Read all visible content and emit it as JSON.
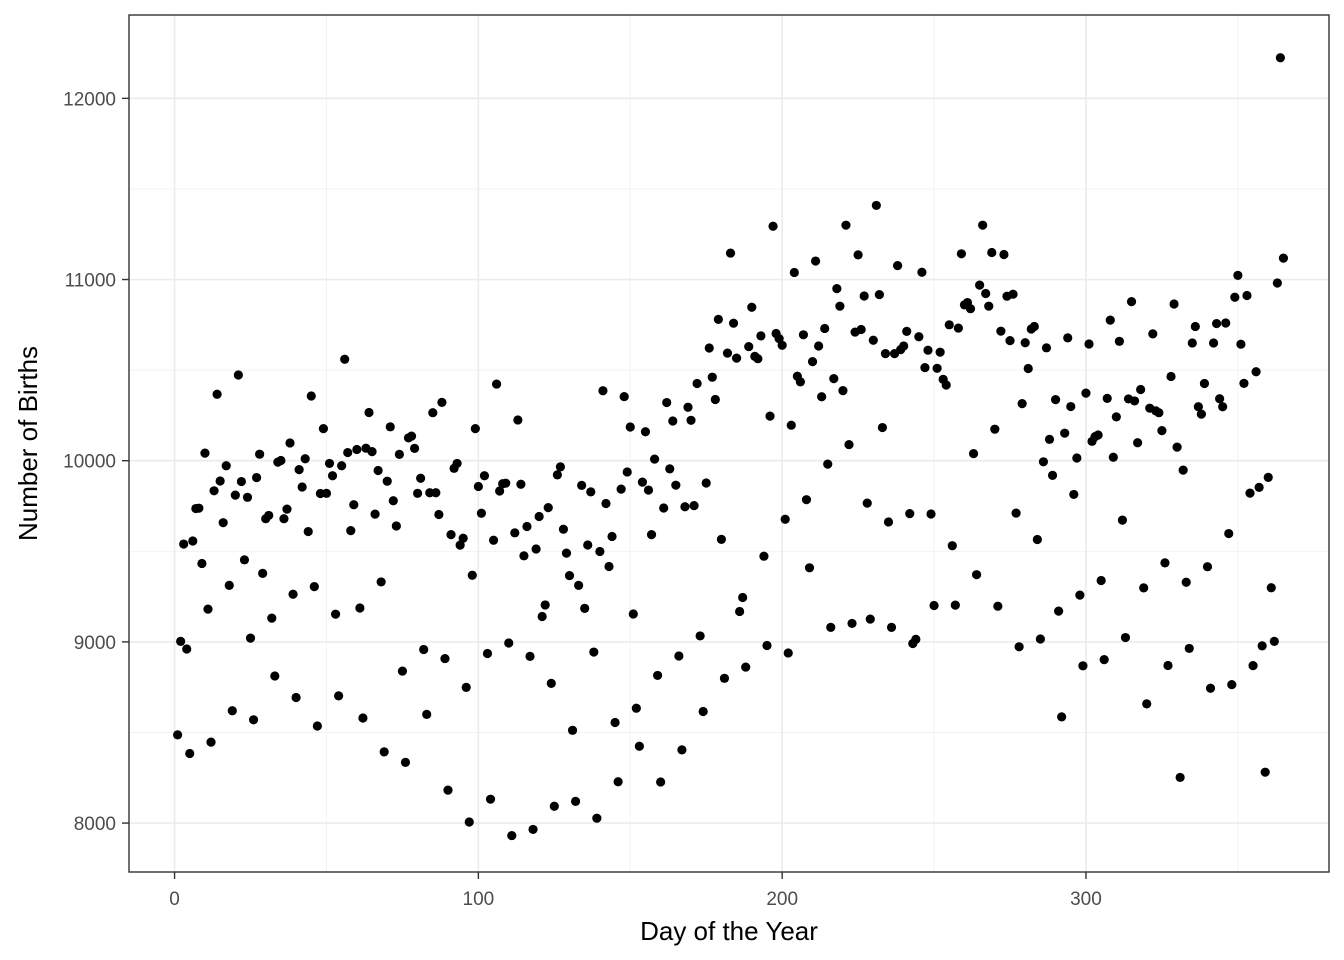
{
  "chart_data": {
    "type": "scatter",
    "xlabel": "Day of the Year",
    "ylabel": "Number of Births",
    "xlim": [
      -15,
      380
    ],
    "ylim": [
      7730,
      12460
    ],
    "x_ticks": [
      0,
      100,
      200,
      300
    ],
    "y_ticks": [
      8000,
      9000,
      10000,
      11000,
      12000
    ],
    "x_minor": [
      50,
      150,
      250,
      350
    ],
    "y_minor": [
      8500,
      9500,
      10500,
      11500
    ],
    "grid": true,
    "theme": "bw",
    "point_color": "#000000",
    "points": [
      [
        1,
        8487
      ],
      [
        2,
        9003
      ],
      [
        3,
        9540
      ],
      [
        4,
        8961
      ],
      [
        5,
        8384
      ],
      [
        6,
        9557
      ],
      [
        7,
        9736
      ],
      [
        8,
        9738
      ],
      [
        9,
        9433
      ],
      [
        10,
        10042
      ],
      [
        11,
        9181
      ],
      [
        12,
        8447
      ],
      [
        13,
        9834
      ],
      [
        14,
        10367
      ],
      [
        15,
        9888
      ],
      [
        16,
        9658
      ],
      [
        17,
        9972
      ],
      [
        18,
        9312
      ],
      [
        19,
        8620
      ],
      [
        20,
        9810
      ],
      [
        21,
        10473
      ],
      [
        22,
        9885
      ],
      [
        23,
        9453
      ],
      [
        24,
        9798
      ],
      [
        25,
        9021
      ],
      [
        26,
        8570
      ],
      [
        27,
        9907
      ],
      [
        28,
        10036
      ],
      [
        29,
        9378
      ],
      [
        30,
        9680
      ],
      [
        31,
        9698
      ],
      [
        32,
        9131
      ],
      [
        33,
        8812
      ],
      [
        34,
        9992
      ],
      [
        35,
        10001
      ],
      [
        36,
        9680
      ],
      [
        37,
        9733
      ],
      [
        38,
        10098
      ],
      [
        39,
        9263
      ],
      [
        40,
        8693
      ],
      [
        41,
        9951
      ],
      [
        42,
        9855
      ],
      [
        43,
        10011
      ],
      [
        44,
        9609
      ],
      [
        45,
        10357
      ],
      [
        46,
        9305
      ],
      [
        47,
        8536
      ],
      [
        48,
        9819
      ],
      [
        49,
        10177
      ],
      [
        50,
        9820
      ],
      [
        51,
        9985
      ],
      [
        52,
        9917
      ],
      [
        53,
        9153
      ],
      [
        54,
        8702
      ],
      [
        55,
        9972
      ],
      [
        56,
        10560
      ],
      [
        57,
        10045
      ],
      [
        58,
        9614
      ],
      [
        59,
        9757
      ],
      [
        60,
        10062
      ],
      [
        61,
        9187
      ],
      [
        62,
        8580
      ],
      [
        63,
        10069
      ],
      [
        64,
        10266
      ],
      [
        65,
        10050
      ],
      [
        66,
        9705
      ],
      [
        67,
        9946
      ],
      [
        68,
        9331
      ],
      [
        69,
        8393
      ],
      [
        70,
        9887
      ],
      [
        71,
        10187
      ],
      [
        72,
        9779
      ],
      [
        73,
        9640
      ],
      [
        74,
        10035
      ],
      [
        75,
        8839
      ],
      [
        76,
        8335
      ],
      [
        77,
        10126
      ],
      [
        78,
        10136
      ],
      [
        79,
        10068
      ],
      [
        80,
        9820
      ],
      [
        81,
        9903
      ],
      [
        82,
        8958
      ],
      [
        83,
        8600
      ],
      [
        84,
        9823
      ],
      [
        85,
        10265
      ],
      [
        86,
        9823
      ],
      [
        87,
        9703
      ],
      [
        88,
        10322
      ],
      [
        89,
        8908
      ],
      [
        90,
        8182
      ],
      [
        91,
        9592
      ],
      [
        92,
        9958
      ],
      [
        93,
        9985
      ],
      [
        94,
        9534
      ],
      [
        95,
        9572
      ],
      [
        96,
        8749
      ],
      [
        97,
        8006
      ],
      [
        98,
        9368
      ],
      [
        99,
        10177
      ],
      [
        100,
        9858
      ],
      [
        101,
        9710
      ],
      [
        102,
        9917
      ],
      [
        103,
        8936
      ],
      [
        104,
        8132
      ],
      [
        105,
        9561
      ],
      [
        106,
        10423
      ],
      [
        107,
        9833
      ],
      [
        108,
        9873
      ],
      [
        109,
        9876
      ],
      [
        110,
        8994
      ],
      [
        111,
        7931
      ],
      [
        112,
        9602
      ],
      [
        113,
        10225
      ],
      [
        114,
        9870
      ],
      [
        115,
        9475
      ],
      [
        116,
        9637
      ],
      [
        117,
        8920
      ],
      [
        118,
        7965
      ],
      [
        119,
        9513
      ],
      [
        120,
        9692
      ],
      [
        121,
        9140
      ],
      [
        122,
        9204
      ],
      [
        123,
        9741
      ],
      [
        124,
        8771
      ],
      [
        125,
        8093
      ],
      [
        126,
        9922
      ],
      [
        127,
        9966
      ],
      [
        128,
        9622
      ],
      [
        129,
        9490
      ],
      [
        130,
        9366
      ],
      [
        131,
        8512
      ],
      [
        132,
        8120
      ],
      [
        133,
        9312
      ],
      [
        134,
        9864
      ],
      [
        135,
        9185
      ],
      [
        136,
        9535
      ],
      [
        137,
        9828
      ],
      [
        138,
        8944
      ],
      [
        139,
        8027
      ],
      [
        140,
        9499
      ],
      [
        141,
        10386
      ],
      [
        142,
        9764
      ],
      [
        143,
        9416
      ],
      [
        144,
        9582
      ],
      [
        145,
        8555
      ],
      [
        146,
        8228
      ],
      [
        147,
        9843
      ],
      [
        148,
        10354
      ],
      [
        149,
        9938
      ],
      [
        150,
        10186
      ],
      [
        151,
        9154
      ],
      [
        152,
        8634
      ],
      [
        153,
        8424
      ],
      [
        154,
        9882
      ],
      [
        155,
        10160
      ],
      [
        156,
        9838
      ],
      [
        157,
        9592
      ],
      [
        158,
        10009
      ],
      [
        159,
        8815
      ],
      [
        160,
        8227
      ],
      [
        161,
        9739
      ],
      [
        162,
        10321
      ],
      [
        163,
        9955
      ],
      [
        164,
        10219
      ],
      [
        165,
        9865
      ],
      [
        166,
        8922
      ],
      [
        167,
        8404
      ],
      [
        168,
        9746
      ],
      [
        169,
        10295
      ],
      [
        170,
        10223
      ],
      [
        171,
        9752
      ],
      [
        172,
        10426
      ],
      [
        173,
        9033
      ],
      [
        174,
        8616
      ],
      [
        175,
        9877
      ],
      [
        176,
        10622
      ],
      [
        177,
        10461
      ],
      [
        178,
        10338
      ],
      [
        179,
        10780
      ],
      [
        180,
        9566
      ],
      [
        181,
        8799
      ],
      [
        182,
        10594
      ],
      [
        183,
        11146
      ],
      [
        184,
        10759
      ],
      [
        185,
        10566
      ],
      [
        186,
        9168
      ],
      [
        187,
        9245
      ],
      [
        188,
        8861
      ],
      [
        189,
        10630
      ],
      [
        190,
        10847
      ],
      [
        191,
        10576
      ],
      [
        192,
        10563
      ],
      [
        193,
        10689
      ],
      [
        194,
        9473
      ],
      [
        195,
        8980
      ],
      [
        196,
        10246
      ],
      [
        197,
        11294
      ],
      [
        198,
        10702
      ],
      [
        199,
        10674
      ],
      [
        200,
        10637
      ],
      [
        201,
        9677
      ],
      [
        202,
        8939
      ],
      [
        203,
        10196
      ],
      [
        204,
        11039
      ],
      [
        205,
        10466
      ],
      [
        206,
        10435
      ],
      [
        207,
        10695
      ],
      [
        208,
        9785
      ],
      [
        209,
        9409
      ],
      [
        210,
        10547
      ],
      [
        211,
        11102
      ],
      [
        212,
        10633
      ],
      [
        213,
        10353
      ],
      [
        214,
        10730
      ],
      [
        215,
        9981
      ],
      [
        216,
        9080
      ],
      [
        217,
        10453
      ],
      [
        218,
        10950
      ],
      [
        219,
        10853
      ],
      [
        220,
        10387
      ],
      [
        221,
        11300
      ],
      [
        222,
        10089
      ],
      [
        223,
        9102
      ],
      [
        224,
        10710
      ],
      [
        225,
        11136
      ],
      [
        226,
        10724
      ],
      [
        227,
        10909
      ],
      [
        228,
        9766
      ],
      [
        229,
        9126
      ],
      [
        230,
        10665
      ],
      [
        231,
        11409
      ],
      [
        232,
        10917
      ],
      [
        233,
        10183
      ],
      [
        234,
        10591
      ],
      [
        235,
        9662
      ],
      [
        236,
        9080
      ],
      [
        237,
        10591
      ],
      [
        238,
        11077
      ],
      [
        239,
        10613
      ],
      [
        240,
        10633
      ],
      [
        241,
        10714
      ],
      [
        242,
        9708
      ],
      [
        243,
        8991
      ],
      [
        244,
        9014
      ],
      [
        245,
        10684
      ],
      [
        246,
        11040
      ],
      [
        247,
        10514
      ],
      [
        248,
        10610
      ],
      [
        249,
        9706
      ],
      [
        250,
        9201
      ],
      [
        251,
        10510
      ],
      [
        252,
        10599
      ],
      [
        253,
        10449
      ],
      [
        254,
        10418
      ],
      [
        255,
        10750
      ],
      [
        256,
        9531
      ],
      [
        257,
        9203
      ],
      [
        258,
        10732
      ],
      [
        259,
        11142
      ],
      [
        260,
        10860
      ],
      [
        261,
        10873
      ],
      [
        262,
        10839
      ],
      [
        263,
        10039
      ],
      [
        264,
        9371
      ],
      [
        265,
        10969
      ],
      [
        266,
        11300
      ],
      [
        267,
        10923
      ],
      [
        268,
        10853
      ],
      [
        269,
        11149
      ],
      [
        270,
        10174
      ],
      [
        271,
        9197
      ],
      [
        272,
        10715
      ],
      [
        273,
        11138
      ],
      [
        274,
        10908
      ],
      [
        275,
        10663
      ],
      [
        276,
        10919
      ],
      [
        277,
        9711
      ],
      [
        278,
        8973
      ],
      [
        279,
        10315
      ],
      [
        280,
        10651
      ],
      [
        281,
        10509
      ],
      [
        282,
        10727
      ],
      [
        283,
        10741
      ],
      [
        284,
        9565
      ],
      [
        285,
        9016
      ],
      [
        286,
        9994
      ],
      [
        287,
        10623
      ],
      [
        288,
        10118
      ],
      [
        289,
        9919
      ],
      [
        290,
        10337
      ],
      [
        291,
        9170
      ],
      [
        292,
        8586
      ],
      [
        293,
        10152
      ],
      [
        294,
        10678
      ],
      [
        295,
        10299
      ],
      [
        296,
        9814
      ],
      [
        297,
        10015
      ],
      [
        298,
        9258
      ],
      [
        299,
        8868
      ],
      [
        300,
        10373
      ],
      [
        301,
        10644
      ],
      [
        302,
        10107
      ],
      [
        303,
        10133
      ],
      [
        304,
        10142
      ],
      [
        305,
        9339
      ],
      [
        306,
        8902
      ],
      [
        307,
        10344
      ],
      [
        308,
        10776
      ],
      [
        309,
        10019
      ],
      [
        310,
        10242
      ],
      [
        311,
        10659
      ],
      [
        312,
        9672
      ],
      [
        313,
        9024
      ],
      [
        314,
        10341
      ],
      [
        315,
        10878
      ],
      [
        316,
        10330
      ],
      [
        317,
        10099
      ],
      [
        318,
        10393
      ],
      [
        319,
        9298
      ],
      [
        320,
        8658
      ],
      [
        321,
        10290
      ],
      [
        322,
        10700
      ],
      [
        323,
        10275
      ],
      [
        324,
        10265
      ],
      [
        325,
        10166
      ],
      [
        326,
        9436
      ],
      [
        327,
        8870
      ],
      [
        328,
        10465
      ],
      [
        329,
        10865
      ],
      [
        330,
        10075
      ],
      [
        331,
        8252
      ],
      [
        332,
        9948
      ],
      [
        333,
        9329
      ],
      [
        334,
        8964
      ],
      [
        335,
        10650
      ],
      [
        336,
        10741
      ],
      [
        337,
        10298
      ],
      [
        338,
        10257
      ],
      [
        339,
        10426
      ],
      [
        340,
        9415
      ],
      [
        341,
        8744
      ],
      [
        342,
        10650
      ],
      [
        343,
        10757
      ],
      [
        344,
        10342
      ],
      [
        345,
        10298
      ],
      [
        346,
        10760
      ],
      [
        347,
        9598
      ],
      [
        348,
        8764
      ],
      [
        349,
        10902
      ],
      [
        350,
        11023
      ],
      [
        351,
        10643
      ],
      [
        352,
        10427
      ],
      [
        353,
        10912
      ],
      [
        354,
        9821
      ],
      [
        355,
        8869
      ],
      [
        356,
        10491
      ],
      [
        357,
        9853
      ],
      [
        358,
        8978
      ],
      [
        359,
        8281
      ],
      [
        360,
        9908
      ],
      [
        361,
        9299
      ],
      [
        362,
        9003
      ],
      [
        363,
        10981
      ],
      [
        364,
        12224
      ],
      [
        365,
        11118
      ]
    ]
  }
}
